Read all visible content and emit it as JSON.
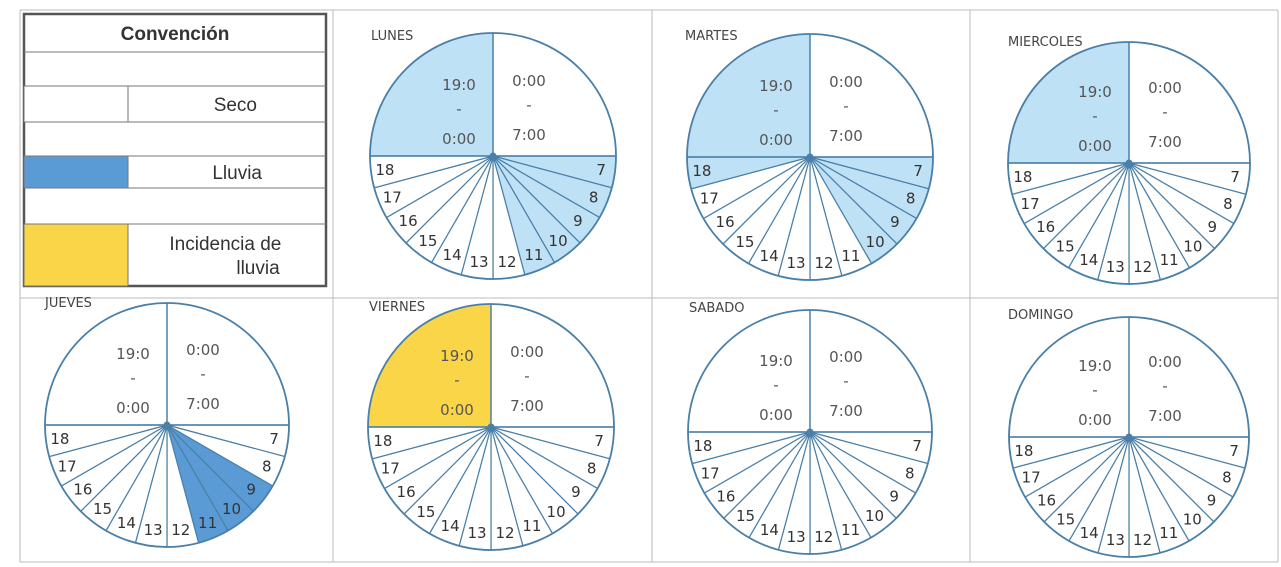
{
  "legend": {
    "title": "Convención",
    "items": [
      {
        "label": "Seco",
        "color": "#ffffff"
      },
      {
        "label": "Lluvia",
        "color": "#5b9bd5"
      },
      {
        "label": "Incidencia de lluvia",
        "color": "#f9d547"
      }
    ]
  },
  "palette": {
    "border": "#4a7fa8",
    "light_blue": "#bfe1f6",
    "blue": "#5b9bd5",
    "yellow": "#f9d547",
    "white": "#ffffff"
  },
  "quadrant_labels": {
    "night_top": "19:0",
    "night_dash": "-",
    "night_bottom": "0:00",
    "morning_top": "0:00",
    "morning_dash": "-",
    "morning_bottom": "7:00"
  },
  "hours": [
    "7",
    "8",
    "9",
    "10",
    "11",
    "12",
    "13",
    "14",
    "15",
    "16",
    "17",
    "18"
  ],
  "days": [
    {
      "name": "LUNES",
      "night_fill": "light_blue",
      "hour_fills": {
        "7": "light_blue",
        "8": "light_blue",
        "9": "light_blue",
        "10": "light_blue",
        "11": "light_blue"
      }
    },
    {
      "name": "MARTES",
      "night_fill": "light_blue",
      "hour_fills": {
        "7": "light_blue",
        "8": "light_blue",
        "9": "light_blue",
        "10": "light_blue",
        "18": "light_blue"
      }
    },
    {
      "name": "MIERCOLES",
      "night_fill": "light_blue",
      "hour_fills": {}
    },
    {
      "name": "JUEVES",
      "night_fill": "white",
      "hour_fills": {
        "9": "blue",
        "10": "blue",
        "11": "blue"
      }
    },
    {
      "name": "VIERNES",
      "night_fill": "yellow",
      "hour_fills": {}
    },
    {
      "name": "SABADO",
      "night_fill": "white",
      "hour_fills": {}
    },
    {
      "name": "DOMINGO",
      "night_fill": "white",
      "hour_fills": {}
    }
  ]
}
